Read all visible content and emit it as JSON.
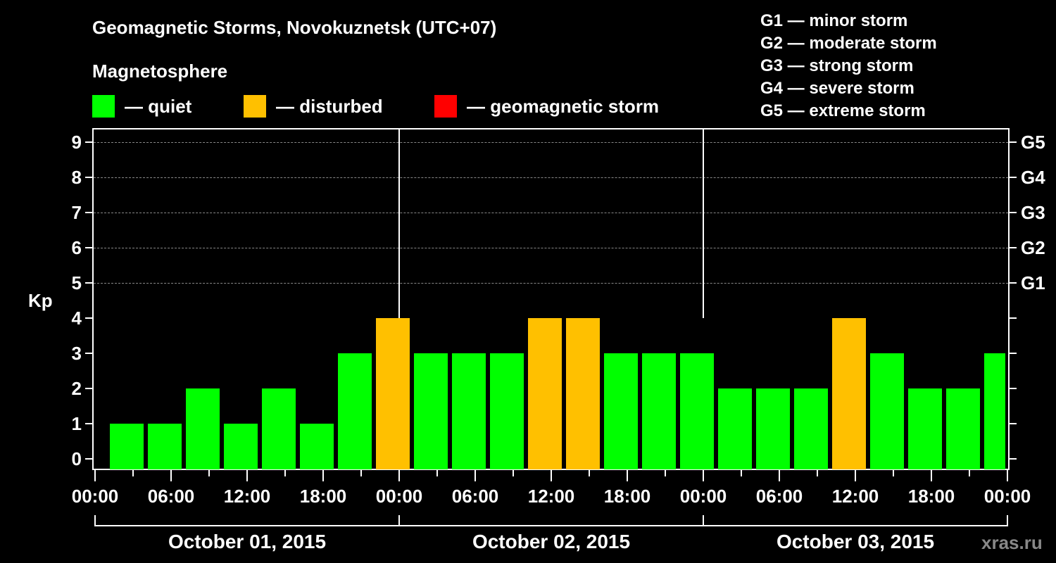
{
  "header": {
    "title": "Geomagnetic Storms, Novokuznetsk (UTC+07)",
    "subtitle": "Magnetosphere"
  },
  "legend": {
    "items": [
      {
        "label": "— quiet",
        "color": "#00ff00"
      },
      {
        "label": "— disturbed",
        "color": "#ffc000"
      },
      {
        "label": "— geomagnetic storm",
        "color": "#ff0000"
      }
    ]
  },
  "g_legend": [
    "G1 — minor storm",
    "G2 — moderate storm",
    "G3 — strong storm",
    "G4 — severe storm",
    "G5 — extreme storm"
  ],
  "watermark": "xras.ru",
  "colors": {
    "quiet": "#00ff00",
    "disturbed": "#ffc000",
    "storm": "#ff0000",
    "grid": "#888888",
    "axis": "#ffffff",
    "background": "#000000"
  },
  "chart_data": {
    "type": "bar",
    "title": "Geomagnetic Storms, Novokuznetsk (UTC+07)",
    "subtitle": "Magnetosphere",
    "xlabel": "",
    "ylabel": "Kp",
    "ylim": [
      0,
      9
    ],
    "yticks": [
      0,
      1,
      2,
      3,
      4,
      5,
      6,
      7,
      8,
      9
    ],
    "right_axis_labels": [
      {
        "kp": 5,
        "label": "G1"
      },
      {
        "kp": 6,
        "label": "G2"
      },
      {
        "kp": 7,
        "label": "G3"
      },
      {
        "kp": 8,
        "label": "G4"
      },
      {
        "kp": 9,
        "label": "G5"
      }
    ],
    "grid": "horizontal dashed at Kp 5–9",
    "x_tick_labels": [
      "00:00",
      "06:00",
      "12:00",
      "18:00",
      "00:00",
      "06:00",
      "12:00",
      "18:00",
      "00:00",
      "06:00",
      "12:00",
      "18:00",
      "00:00"
    ],
    "days": [
      "October 01, 2015",
      "October 02, 2015",
      "October 03, 2015"
    ],
    "interval_hours": 3,
    "categories": [
      "Oct 01 00-03",
      "Oct 01 03-06",
      "Oct 01 06-09",
      "Oct 01 09-12",
      "Oct 01 12-15",
      "Oct 01 15-18",
      "Oct 01 18-21",
      "Oct 01 21-24",
      "Oct 02 00-03",
      "Oct 02 03-06",
      "Oct 02 06-09",
      "Oct 02 09-12",
      "Oct 02 12-15",
      "Oct 02 15-18",
      "Oct 02 18-21",
      "Oct 02 21-24",
      "Oct 03 00-03",
      "Oct 03 03-06",
      "Oct 03 06-09",
      "Oct 03 09-12",
      "Oct 03 12-15",
      "Oct 03 15-18",
      "Oct 03 18-21",
      "Oct 03 21-24"
    ],
    "values": [
      1,
      1,
      2,
      1,
      2,
      1,
      3,
      4,
      3,
      3,
      3,
      4,
      4,
      3,
      3,
      3,
      2,
      2,
      2,
      4,
      3,
      2,
      2,
      3
    ],
    "status": [
      "quiet",
      "quiet",
      "quiet",
      "quiet",
      "quiet",
      "quiet",
      "quiet",
      "disturbed",
      "quiet",
      "quiet",
      "quiet",
      "disturbed",
      "disturbed",
      "quiet",
      "quiet",
      "quiet",
      "quiet",
      "quiet",
      "quiet",
      "disturbed",
      "quiet",
      "quiet",
      "quiet",
      "quiet"
    ],
    "legend": [
      "quiet",
      "disturbed",
      "geomagnetic storm"
    ]
  }
}
